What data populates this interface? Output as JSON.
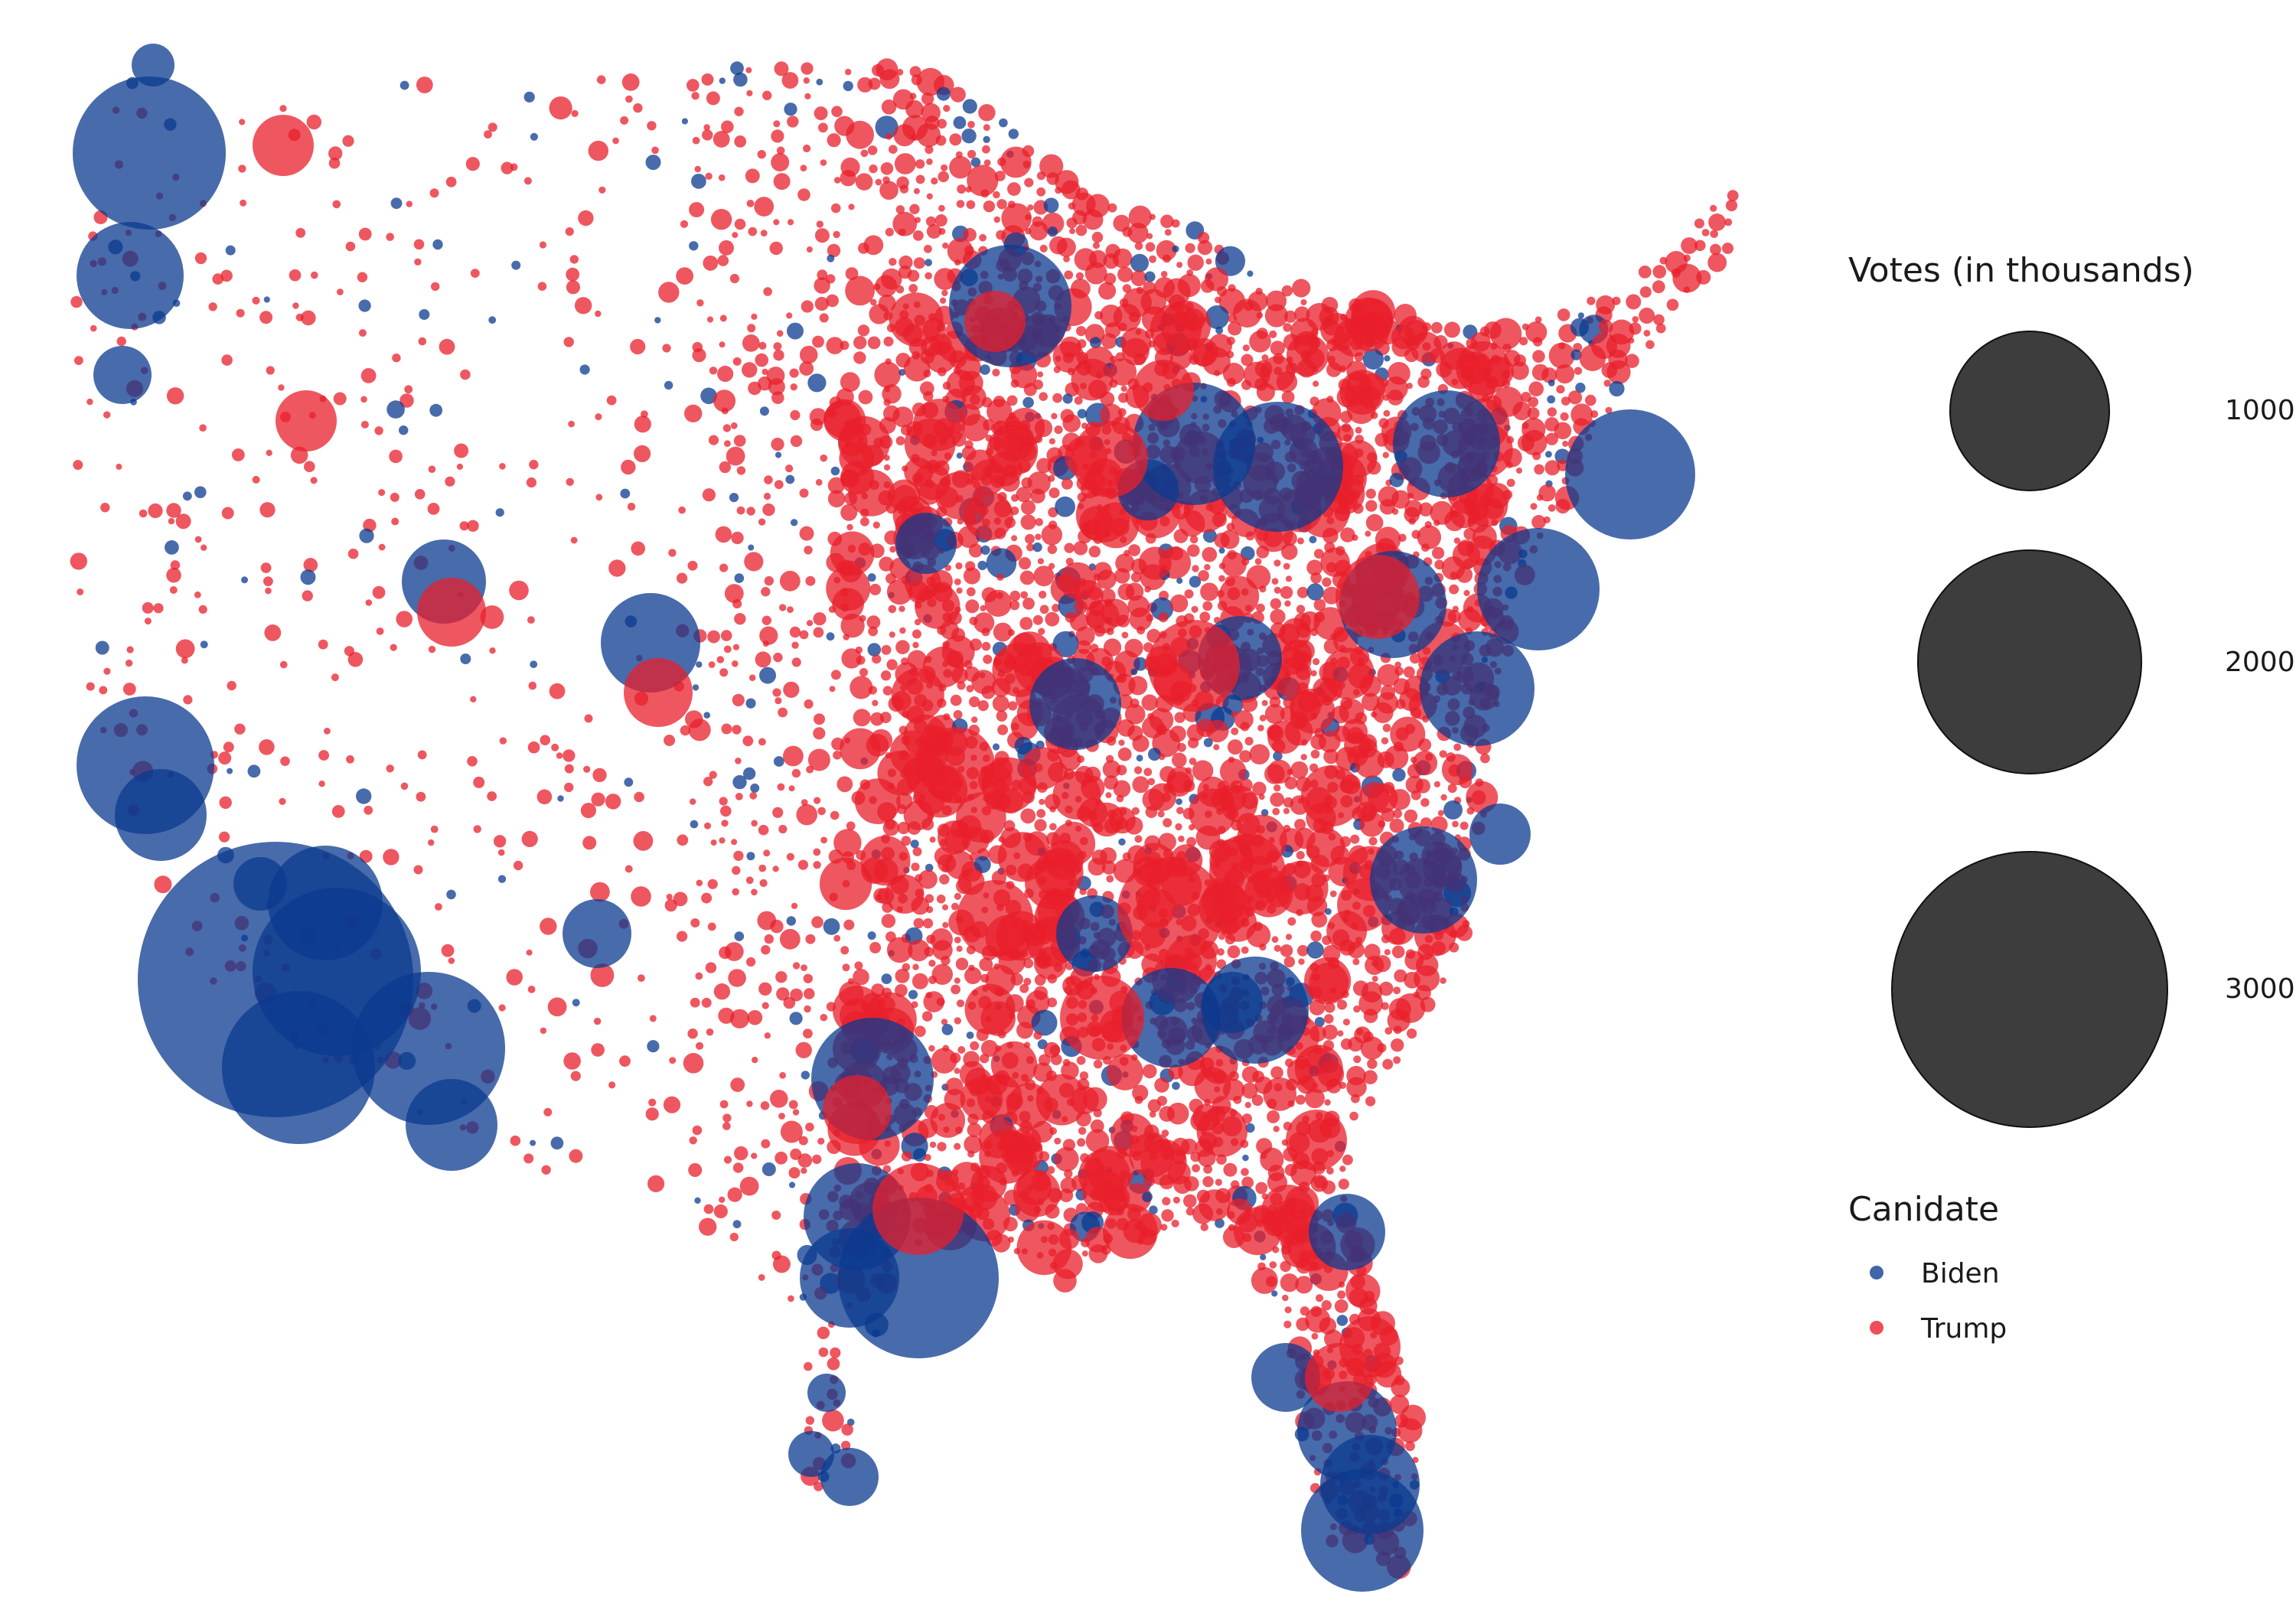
{
  "colors": {
    "biden": "#0b3a8f",
    "trump": "#e81f2b",
    "size_legend_fill": "#3d3d3d"
  },
  "legend": {
    "size_title": "Votes (in thousands)",
    "size_items": [
      {
        "label": "1000",
        "votes": 1000
      },
      {
        "label": "2000",
        "votes": 2000
      },
      {
        "label": "3000",
        "votes": 3000
      }
    ],
    "color_title": "Canidate",
    "color_items": [
      {
        "label": "Biden",
        "key": "biden"
      },
      {
        "label": "Trump",
        "key": "trump"
      }
    ]
  }
}
